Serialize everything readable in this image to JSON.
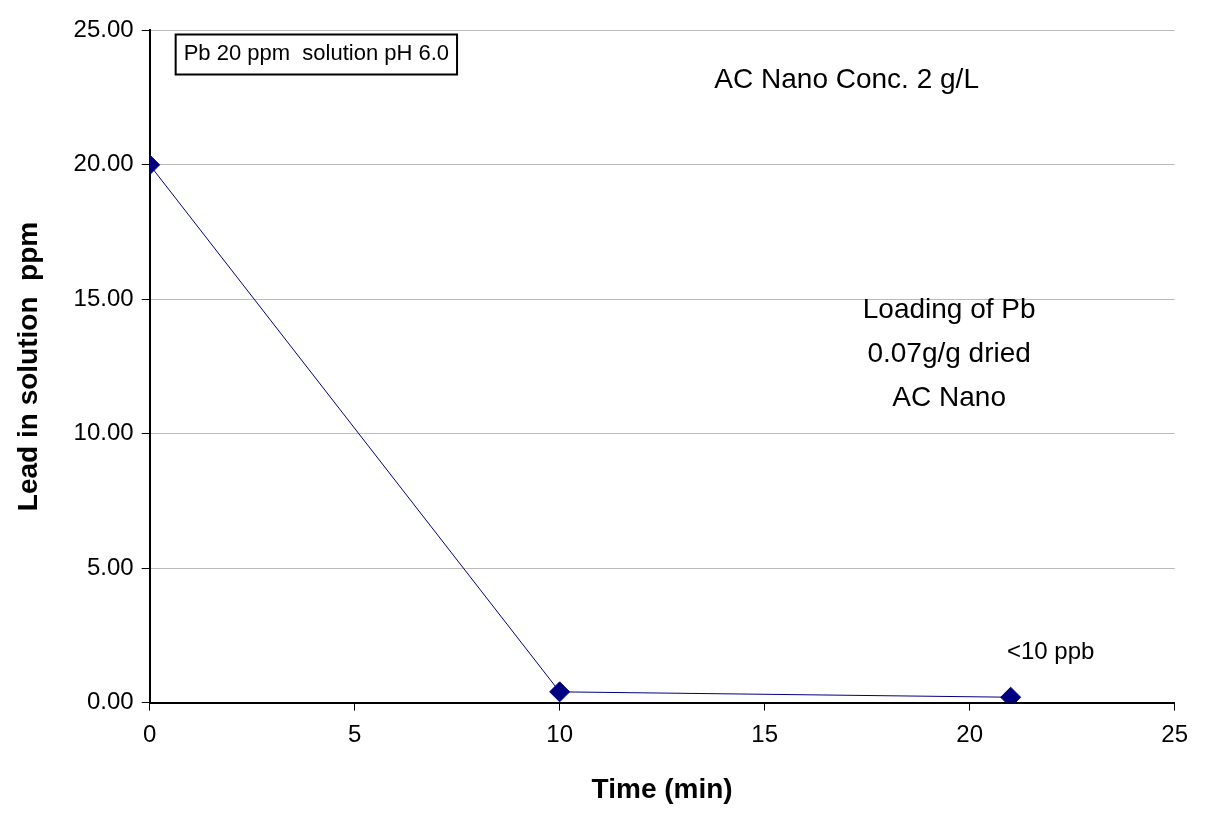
{
  "chart_data": {
    "type": "line",
    "xlabel": "Time (min)",
    "ylabel": "Lead in solution  ppm",
    "x": [
      0,
      10,
      21
    ],
    "series": [
      {
        "color": "#000080",
        "values": [
          20,
          0.4,
          0.2
        ]
      }
    ],
    "xlim": [
      0,
      25
    ],
    "xticks": [
      0,
      5,
      10,
      15,
      20,
      25
    ],
    "ylim": [
      0,
      25
    ],
    "yticks": [
      {
        "value": 0,
        "label": "0.00"
      },
      {
        "value": 5,
        "label": "5.00"
      },
      {
        "value": 10,
        "label": "10.00"
      },
      {
        "value": 15,
        "label": "15.00"
      },
      {
        "value": 20,
        "label": "20.00"
      },
      {
        "value": 25,
        "label": "25.00"
      }
    ],
    "grid": "y",
    "marker": "diamond",
    "line_style": "solid",
    "legend": false,
    "annotations": [
      "Pb 20 ppm  solution pH 6.0",
      "AC Nano Conc. 2 g/L",
      "Loading of Pb\n0.07g/g dried\nAC Nano",
      {
        "text": "<10 ppb",
        "x": 21,
        "y": 0.2
      }
    ]
  }
}
